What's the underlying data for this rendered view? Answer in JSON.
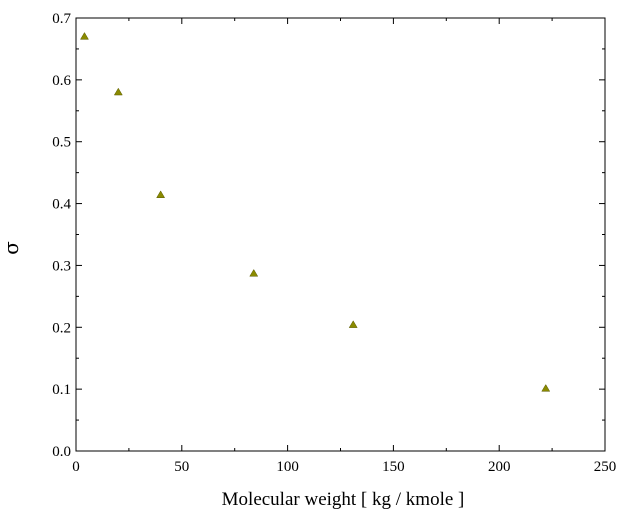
{
  "chart_data": {
    "type": "scatter",
    "title": "",
    "xlabel": "Molecular weight [ kg / kmole ]",
    "ylabel": "σ",
    "xlim": [
      0,
      250
    ],
    "ylim": [
      0.0,
      0.7
    ],
    "xticks": [
      0,
      50,
      100,
      150,
      200,
      250
    ],
    "yticks": [
      0.0,
      0.1,
      0.2,
      0.3,
      0.4,
      0.5,
      0.6,
      0.7
    ],
    "xtick_labels": [
      "0",
      "50",
      "100",
      "150",
      "200",
      "250"
    ],
    "ytick_labels": [
      "0.0",
      "0.1",
      "0.2",
      "0.3",
      "0.4",
      "0.5",
      "0.6",
      "0.7"
    ],
    "grid": false,
    "legend": "none",
    "series": [
      {
        "marker": "triangle",
        "color": "#8a8a00",
        "x": [
          4,
          20,
          40,
          84,
          131,
          222
        ],
        "y": [
          0.67,
          0.58,
          0.414,
          0.287,
          0.204,
          0.101
        ]
      }
    ]
  }
}
